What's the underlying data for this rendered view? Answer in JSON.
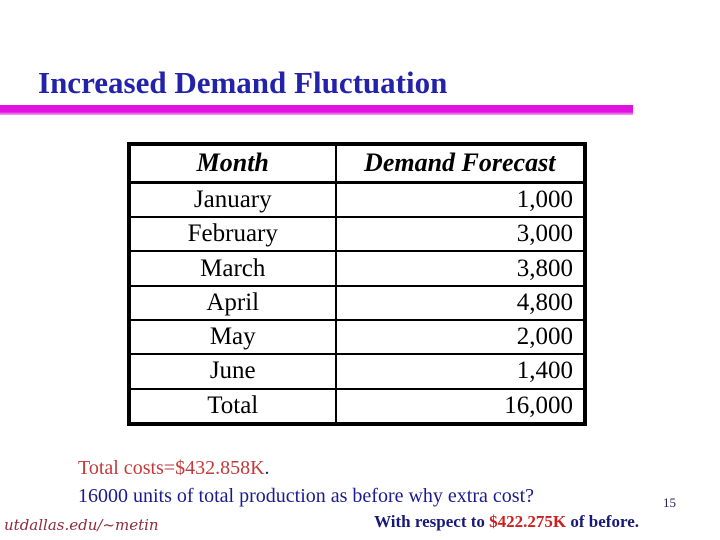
{
  "slide": {
    "title": "Increased Demand Fluctuation",
    "page_number": "15"
  },
  "table": {
    "headers": {
      "month": "Month",
      "forecast": "Demand Forecast"
    },
    "rows": [
      {
        "month": "January",
        "forecast": "1,000"
      },
      {
        "month": "February",
        "forecast": "3,000"
      },
      {
        "month": "March",
        "forecast": "3,800"
      },
      {
        "month": "April",
        "forecast": "4,800"
      },
      {
        "month": "May",
        "forecast": "2,000"
      },
      {
        "month": "June",
        "forecast": "1,400"
      },
      {
        "month": "Total",
        "forecast": "16,000"
      }
    ]
  },
  "notes": {
    "total_costs": "Total costs=$432.858K",
    "total_costs_period": ".",
    "production_line": "16000 units of total production as before why extra cost?"
  },
  "footer": {
    "left_url": "utdallas.edu/~metin",
    "right_prefix": "With respect to ",
    "right_amount": "$422.275K",
    "right_suffix": " of before."
  },
  "colors": {
    "title_navy": "#2222aa",
    "body_navy": "#1a1a8f",
    "cost_red": "#c23a3a",
    "footer_red": "#cc2020",
    "footer_maroon": "#8e2c3c",
    "bar_magenta": "#e112e1"
  }
}
